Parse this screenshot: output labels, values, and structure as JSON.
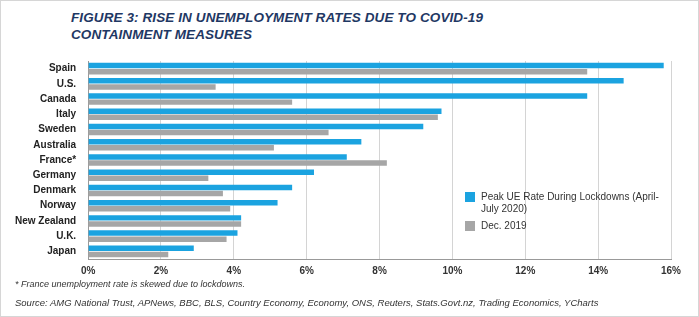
{
  "chart_data": {
    "type": "bar",
    "title": "FIGURE 3: RISE IN UNEMPLOYMENT RATES DUE TO COVID-19 CONTAINMENT MEASURES",
    "annotations": [
      "* France unemployment rate is skewed due to lockdowns.",
      "Source: AMG National Trust, APNews, BBC, BLS, Country Economy, Economy, ONS, Reuters, Stats.Govt.nz, Trading Economics, YCharts"
    ],
    "orientation": "horizontal",
    "categories": [
      "Spain",
      "U.S.",
      "Canada",
      "Italy",
      "Sweden",
      "Australia",
      "France*",
      "Germany",
      "Denmark",
      "Norway",
      "New Zealand",
      "U.K.",
      "Japan"
    ],
    "series": [
      {
        "name": "Peak UE Rate During Lockdowns (April-July 2020)",
        "color": "#1ba3e0",
        "values": [
          15.8,
          14.7,
          13.7,
          9.7,
          9.2,
          7.5,
          7.1,
          6.2,
          5.6,
          5.2,
          4.2,
          4.1,
          2.9
        ]
      },
      {
        "name": "Dec. 2019",
        "color": "#a6a6a6",
        "values": [
          13.7,
          3.5,
          5.6,
          9.6,
          6.6,
          5.1,
          8.2,
          3.3,
          3.7,
          3.9,
          4.2,
          3.8,
          2.2
        ]
      }
    ],
    "xlim": [
      0,
      16
    ],
    "xticks": [
      {
        "value": 0,
        "label": "0%"
      },
      {
        "value": 2,
        "label": "2%"
      },
      {
        "value": 4,
        "label": "4%"
      },
      {
        "value": 6,
        "label": "6%"
      },
      {
        "value": 8,
        "label": "8%"
      },
      {
        "value": 10,
        "label": "10%"
      },
      {
        "value": 12,
        "label": "12%"
      },
      {
        "value": 14,
        "label": "14%"
      },
      {
        "value": 16,
        "label": "16%"
      }
    ],
    "grid": true,
    "legend": "lower right"
  }
}
